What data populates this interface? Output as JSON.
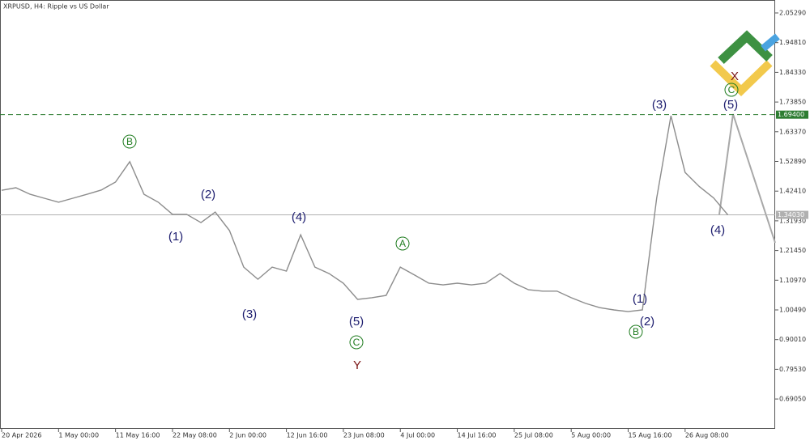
{
  "chart_data": {
    "type": "line",
    "title": "XRPUSD, H4:  Ripple vs US Dollar",
    "categories": [
      "20 Apr 2026",
      null,
      null,
      null,
      "1 May 00:00",
      null,
      null,
      null,
      "11 May 16:00",
      null,
      null,
      null,
      "22 May 08:00",
      null,
      null,
      null,
      "2 Jun 00:00",
      null,
      null,
      null,
      "12 Jun 16:00",
      null,
      null,
      null,
      "23 Jun 08:00",
      null,
      null,
      null,
      "4 Jul 00:00",
      null,
      null,
      null,
      "14 Jul 16:00",
      null,
      null,
      null,
      "25 Jul 08:00",
      null,
      null,
      null,
      "5 Aug 00:00",
      null,
      null,
      null,
      "15 Aug 16:00",
      null,
      null,
      null,
      "26 Aug 08:00",
      null,
      null,
      null
    ],
    "values": [
      1.427,
      1.436,
      1.413,
      1.399,
      1.385,
      1.399,
      1.413,
      1.428,
      1.456,
      1.528,
      1.413,
      1.385,
      1.342,
      1.342,
      1.313,
      1.35,
      1.285,
      1.156,
      1.113,
      1.156,
      1.142,
      1.27,
      1.156,
      1.133,
      1.099,
      1.042,
      1.048,
      1.056,
      1.156,
      1.128,
      1.099,
      1.093,
      1.099,
      1.093,
      1.099,
      1.133,
      1.099,
      1.076,
      1.071,
      1.071,
      1.048,
      1.028,
      1.013,
      1.005,
      0.999,
      1.005,
      1.399,
      1.69,
      1.49,
      1.44,
      1.4,
      1.34
    ],
    "color": "#8c8c8c",
    "ylim": [
      0.5851,
      2.0929
    ],
    "yticks": [
      {
        "value": 2.0529,
        "label": "2.05290"
      },
      {
        "value": 1.9481,
        "label": "1.94810"
      },
      {
        "value": 1.8433,
        "label": "1.84330"
      },
      {
        "value": 1.7385,
        "label": "1.73850"
      },
      {
        "value": 1.6337,
        "label": "1.63370"
      },
      {
        "value": 1.5289,
        "label": "1.52890"
      },
      {
        "value": 1.4241,
        "label": "1.42410"
      },
      {
        "value": 1.3193,
        "label": "1.31930"
      },
      {
        "value": 1.2145,
        "label": "1.21450"
      },
      {
        "value": 1.1097,
        "label": "1.10970"
      },
      {
        "value": 1.0049,
        "label": "1.00490"
      },
      {
        "value": 0.9001,
        "label": "0.90010"
      },
      {
        "value": 0.7953,
        "label": "0.79530"
      },
      {
        "value": 0.6905,
        "label": "0.69050"
      }
    ],
    "levels": [
      {
        "value": 1.694,
        "label": "1.69400",
        "color": "#2e7d32",
        "dashed": true
      },
      {
        "value": 1.3403,
        "label": "1.34030",
        "color": "#b0b0b0",
        "dashed": false
      }
    ],
    "annotations": [
      {
        "text": "B",
        "color": "#1e7b1e",
        "circled": true
      },
      {
        "text": "(2)",
        "color": "#1c1c6e",
        "circled": false
      },
      {
        "text": "(1)",
        "color": "#1c1c6e",
        "circled": false
      },
      {
        "text": "(3)",
        "color": "#1c1c6e",
        "circled": false
      },
      {
        "text": "(4)",
        "color": "#1c1c6e",
        "circled": false
      },
      {
        "text": "(5)",
        "color": "#1c1c6e",
        "circled": false
      },
      {
        "text": "C",
        "color": "#1e7b1e",
        "circled": true
      },
      {
        "text": "Y",
        "color": "#7a1414",
        "circled": false
      },
      {
        "text": "A",
        "color": "#1e7b1e",
        "circled": true
      },
      {
        "text": "(1)",
        "color": "#1c1c6e",
        "circled": false
      },
      {
        "text": "(2)",
        "color": "#1c1c6e",
        "circled": false
      },
      {
        "text": "B",
        "color": "#1e7b1e",
        "circled": true
      },
      {
        "text": "(3)",
        "color": "#1c1c6e",
        "circled": false
      },
      {
        "text": "(4)",
        "color": "#1c1c6e",
        "circled": false
      },
      {
        "text": "(5)",
        "color": "#1c1c6e",
        "circled": false
      },
      {
        "text": "C",
        "color": "#1e7b1e",
        "circled": true
      },
      {
        "text": "X",
        "color": "#7a1414",
        "circled": false
      }
    ]
  }
}
